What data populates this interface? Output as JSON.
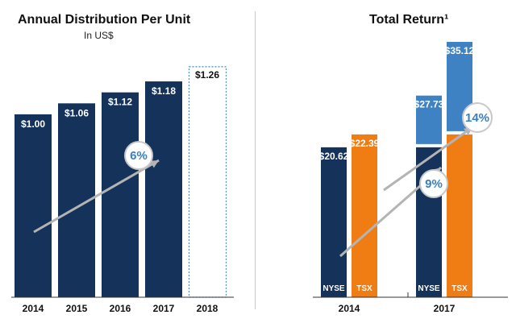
{
  "chart_data": [
    {
      "type": "bar",
      "title": "Annual Distribution Per Unit",
      "subtitle": "In US$",
      "categories": [
        "2014",
        "2015",
        "2016",
        "2017",
        "2018"
      ],
      "values": [
        1.0,
        1.06,
        1.12,
        1.18,
        1.26
      ],
      "labels": [
        "$1.00",
        "$1.06",
        "$1.12",
        "$1.18",
        "$1.26"
      ],
      "projected": [
        false,
        false,
        false,
        false,
        true
      ],
      "ylim": [
        0,
        1.33
      ],
      "growth_label": "6%",
      "colors": {
        "bar": "#14325a",
        "projected_border": "#4a8ac8",
        "arrow": "#b4b4b4",
        "pill_text": "#3b7fbf"
      }
    },
    {
      "type": "bar",
      "title": "Total Return¹",
      "groups": [
        "2014",
        "2017"
      ],
      "series": [
        {
          "name": "NYSE",
          "values": [
            20.62,
            20.62
          ],
          "labels": [
            "$20.62",
            ""
          ]
        },
        {
          "name": "TSX",
          "values": [
            22.39,
            22.39
          ],
          "labels": [
            "$22.39",
            ""
          ]
        }
      ],
      "total_return_2017": {
        "NYSE": {
          "total": 27.73,
          "label": "$27.73"
        },
        "TSX": {
          "total": 35.12,
          "label": "$35.12"
        }
      },
      "ylim": [
        0,
        37
      ],
      "growth_labels": [
        "9%",
        "14%"
      ],
      "colors": {
        "NYSE": "#14325a",
        "TSX": "#f07c14",
        "increment": "#3f82c4",
        "arrow": "#b4b4b4"
      }
    }
  ]
}
